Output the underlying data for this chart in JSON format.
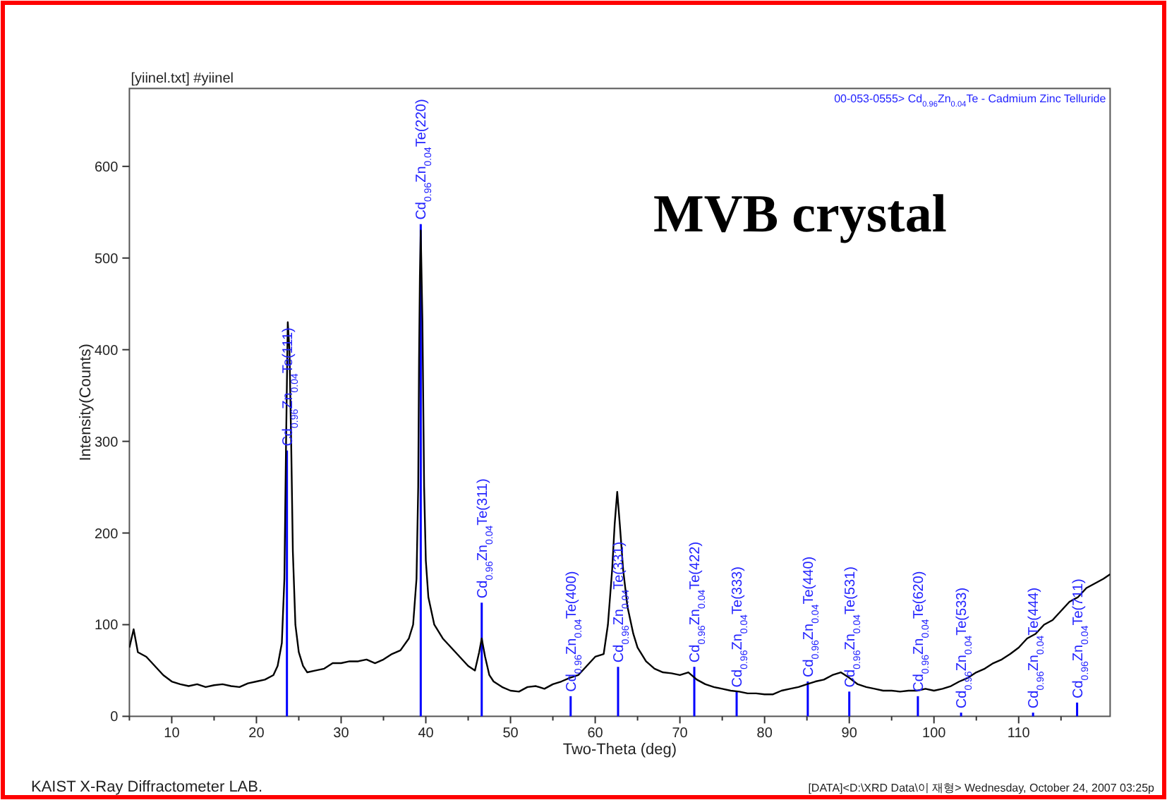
{
  "chart_data": {
    "type": "line",
    "title": "[yiinel.txt] #yiinel",
    "subtitle": "00-053-0555> Cd$_{0.96}$Zn$_{0.04}$Te - Cadmium Zinc Telluride",
    "xlabel": "Two-Theta (deg)",
    "ylabel": "Intensity(Counts)",
    "xlim": [
      5,
      120.8
    ],
    "ylim": [
      0,
      685
    ],
    "xticks": [
      {
        "value": 5,
        "label": null
      },
      10,
      {
        "value": 15,
        "label": null
      },
      20,
      {
        "value": 25,
        "label": null
      },
      30,
      {
        "value": 35,
        "label": null
      },
      40,
      {
        "value": 45,
        "label": null
      },
      50,
      {
        "value": 55,
        "label": null
      },
      60,
      {
        "value": 65,
        "label": null
      },
      70,
      {
        "value": 75,
        "label": null
      },
      80,
      {
        "value": 85,
        "label": null
      },
      90,
      {
        "value": 95,
        "label": null
      },
      100,
      {
        "value": 105,
        "label": null
      },
      110,
      {
        "value": 115,
        "label": null
      }
    ],
    "yticks": [
      0,
      100,
      200,
      300,
      400,
      500,
      600
    ],
    "grid": false,
    "series": [
      {
        "color": "#000000",
        "x": [
          5,
          5.5,
          6,
          7,
          8,
          9,
          10,
          11,
          12,
          13,
          14,
          15,
          16,
          17,
          18,
          19,
          20,
          21,
          22,
          22.5,
          23,
          23.3,
          23.5,
          23.7,
          23.9,
          24.1,
          24.3,
          24.6,
          25,
          25.5,
          26,
          27,
          28,
          29,
          30,
          31,
          32,
          33,
          34,
          35,
          36,
          37,
          38,
          38.5,
          38.9,
          39.1,
          39.2,
          39.3,
          39.4,
          39.6,
          39.8,
          40,
          40.3,
          41,
          42,
          43,
          44,
          45,
          45.8,
          46.3,
          46.6,
          47,
          47.5,
          48,
          49,
          50,
          51,
          52,
          53,
          54,
          55,
          56,
          57,
          58,
          59,
          60,
          61,
          61.5,
          62,
          62.3,
          62.6,
          62.9,
          63.3,
          63.8,
          64.5,
          65,
          66,
          67,
          68,
          69,
          70,
          71,
          72,
          73,
          74,
          75,
          76,
          77,
          78,
          79,
          80,
          81,
          82,
          83,
          84,
          85,
          86,
          87,
          88,
          89,
          90,
          91,
          92,
          93,
          94,
          95,
          96,
          97,
          98,
          99,
          100,
          101,
          102,
          103,
          104,
          105,
          106,
          107,
          108,
          109,
          110,
          111,
          112,
          113,
          114,
          115,
          116,
          117,
          118,
          119,
          120,
          120.8
        ],
        "values": [
          75,
          95,
          70,
          65,
          55,
          45,
          38,
          35,
          33,
          35,
          32,
          34,
          35,
          33,
          32,
          36,
          38,
          40,
          45,
          55,
          80,
          150,
          300,
          430,
          400,
          300,
          180,
          100,
          70,
          55,
          48,
          50,
          52,
          58,
          58,
          60,
          60,
          62,
          58,
          62,
          68,
          72,
          85,
          100,
          150,
          250,
          390,
          480,
          530,
          430,
          250,
          170,
          130,
          100,
          85,
          75,
          65,
          55,
          50,
          70,
          85,
          65,
          45,
          38,
          32,
          28,
          27,
          32,
          33,
          30,
          35,
          38,
          42,
          45,
          55,
          65,
          68,
          100,
          160,
          210,
          245,
          210,
          160,
          120,
          90,
          75,
          60,
          52,
          48,
          47,
          45,
          48,
          40,
          35,
          32,
          30,
          28,
          27,
          25,
          25,
          24,
          24,
          28,
          30,
          32,
          35,
          38,
          40,
          45,
          48,
          42,
          35,
          32,
          30,
          28,
          28,
          27,
          28,
          28,
          30,
          28,
          30,
          33,
          38,
          42,
          48,
          52,
          58,
          62,
          68,
          75,
          85,
          90,
          100,
          105,
          115,
          125,
          130,
          140,
          145,
          150,
          155
        ]
      },
      {
        "type": "bar",
        "color": "#0000ff",
        "x": [
          23.6,
          39.4,
          46.6,
          57.1,
          62.7,
          71.7,
          76.7,
          85.1,
          90.0,
          98.1,
          103.2,
          111.7,
          116.9
        ],
        "values": [
          290,
          537,
          124,
          22,
          54,
          54,
          27,
          38,
          27,
          22,
          4,
          4,
          15
        ]
      }
    ],
    "annotations": [
      "MVB crystal",
      "KAIST X-Ray Diffractometer LAB.",
      "[DATA]<D:\\XRD Data\\이 재형> Wednesday, October 24, 2007 03:25p",
      {
        "text": "Cd$_{0.96}$Zn$_{0.04}$Te(111)",
        "x": 23.6,
        "y": 290
      },
      {
        "text": "Cd$_{0.96}$Zn$_{0.04}$Te(220)",
        "x": 39.4,
        "y": 537
      },
      {
        "text": "Cd$_{0.96}$Zn$_{0.04}$Te(311)",
        "x": 46.6,
        "y": 124
      },
      {
        "text": "Cd$_{0.96}$Zn$_{0.04}$Te(400)",
        "x": 57.1,
        "y": 22
      },
      {
        "text": "Cd$_{0.96}$Zn$_{0.04}$Te(331)",
        "x": 62.7,
        "y": 54
      },
      {
        "text": "Cd$_{0.96}$Zn$_{0.04}$Te(422)",
        "x": 71.7,
        "y": 54
      },
      {
        "text": "Cd$_{0.96}$Zn$_{0.04}$Te(333)",
        "x": 76.7,
        "y": 27
      },
      {
        "text": "Cd$_{0.96}$Zn$_{0.04}$Te(440)",
        "x": 85.1,
        "y": 38
      },
      {
        "text": "Cd$_{0.96}$Zn$_{0.04}$Te(531)",
        "x": 90.0,
        "y": 27
      },
      {
        "text": "Cd$_{0.96}$Zn$_{0.04}$Te(620)",
        "x": 98.1,
        "y": 22
      },
      {
        "text": "Cd$_{0.96}$Zn$_{0.04}$Te(533)",
        "x": 103.2,
        "y": 4
      },
      {
        "text": "Cd$_{0.96}$Zn$_{0.04}$Te(444)",
        "x": 111.7,
        "y": 4
      },
      {
        "text": "Cd$_{0.96}$Zn$_{0.04}$Te(711)",
        "x": 116.9,
        "y": 15
      }
    ]
  }
}
